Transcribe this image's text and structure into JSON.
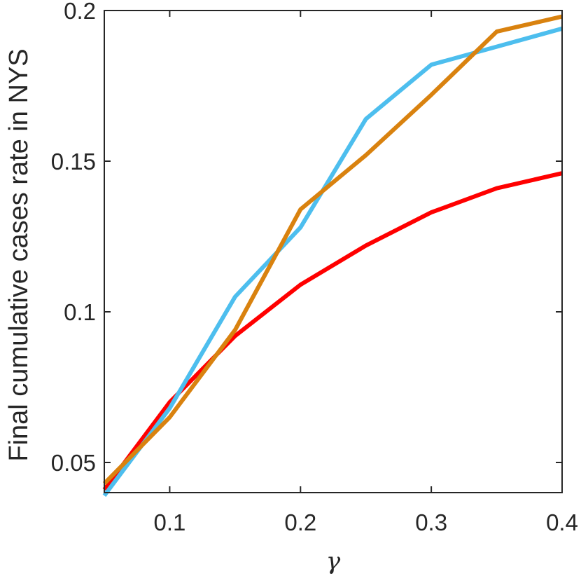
{
  "chart_data": {
    "type": "line",
    "title": "",
    "xlabel": "γ",
    "ylabel": "Final cumulative cases rate in NYS",
    "xlim": [
      0.05,
      0.4
    ],
    "ylim": [
      0.04,
      0.2
    ],
    "xticks": [
      0.1,
      0.2,
      0.3,
      0.4
    ],
    "xtick_labels": [
      "0.1",
      "0.2",
      "0.3",
      "0.4"
    ],
    "yticks": [
      0.05,
      0.1,
      0.15,
      0.2
    ],
    "ytick_labels": [
      "0.05",
      "0.1",
      "0.15",
      "0.2"
    ],
    "grid": false,
    "legend": "none",
    "x": [
      0.05,
      0.1,
      0.15,
      0.2,
      0.25,
      0.3,
      0.35,
      0.4
    ],
    "series": [
      {
        "color": "#FF0000",
        "values": [
          0.041,
          0.07,
          0.092,
          0.109,
          0.122,
          0.133,
          0.141,
          0.146
        ]
      },
      {
        "color": "#4DBEEE",
        "values": [
          0.039,
          0.068,
          0.105,
          0.128,
          0.164,
          0.182,
          0.188,
          0.194
        ]
      },
      {
        "color": "#D9820F",
        "values": [
          0.043,
          0.065,
          0.094,
          0.134,
          0.152,
          0.172,
          0.193,
          0.198
        ]
      }
    ]
  }
}
